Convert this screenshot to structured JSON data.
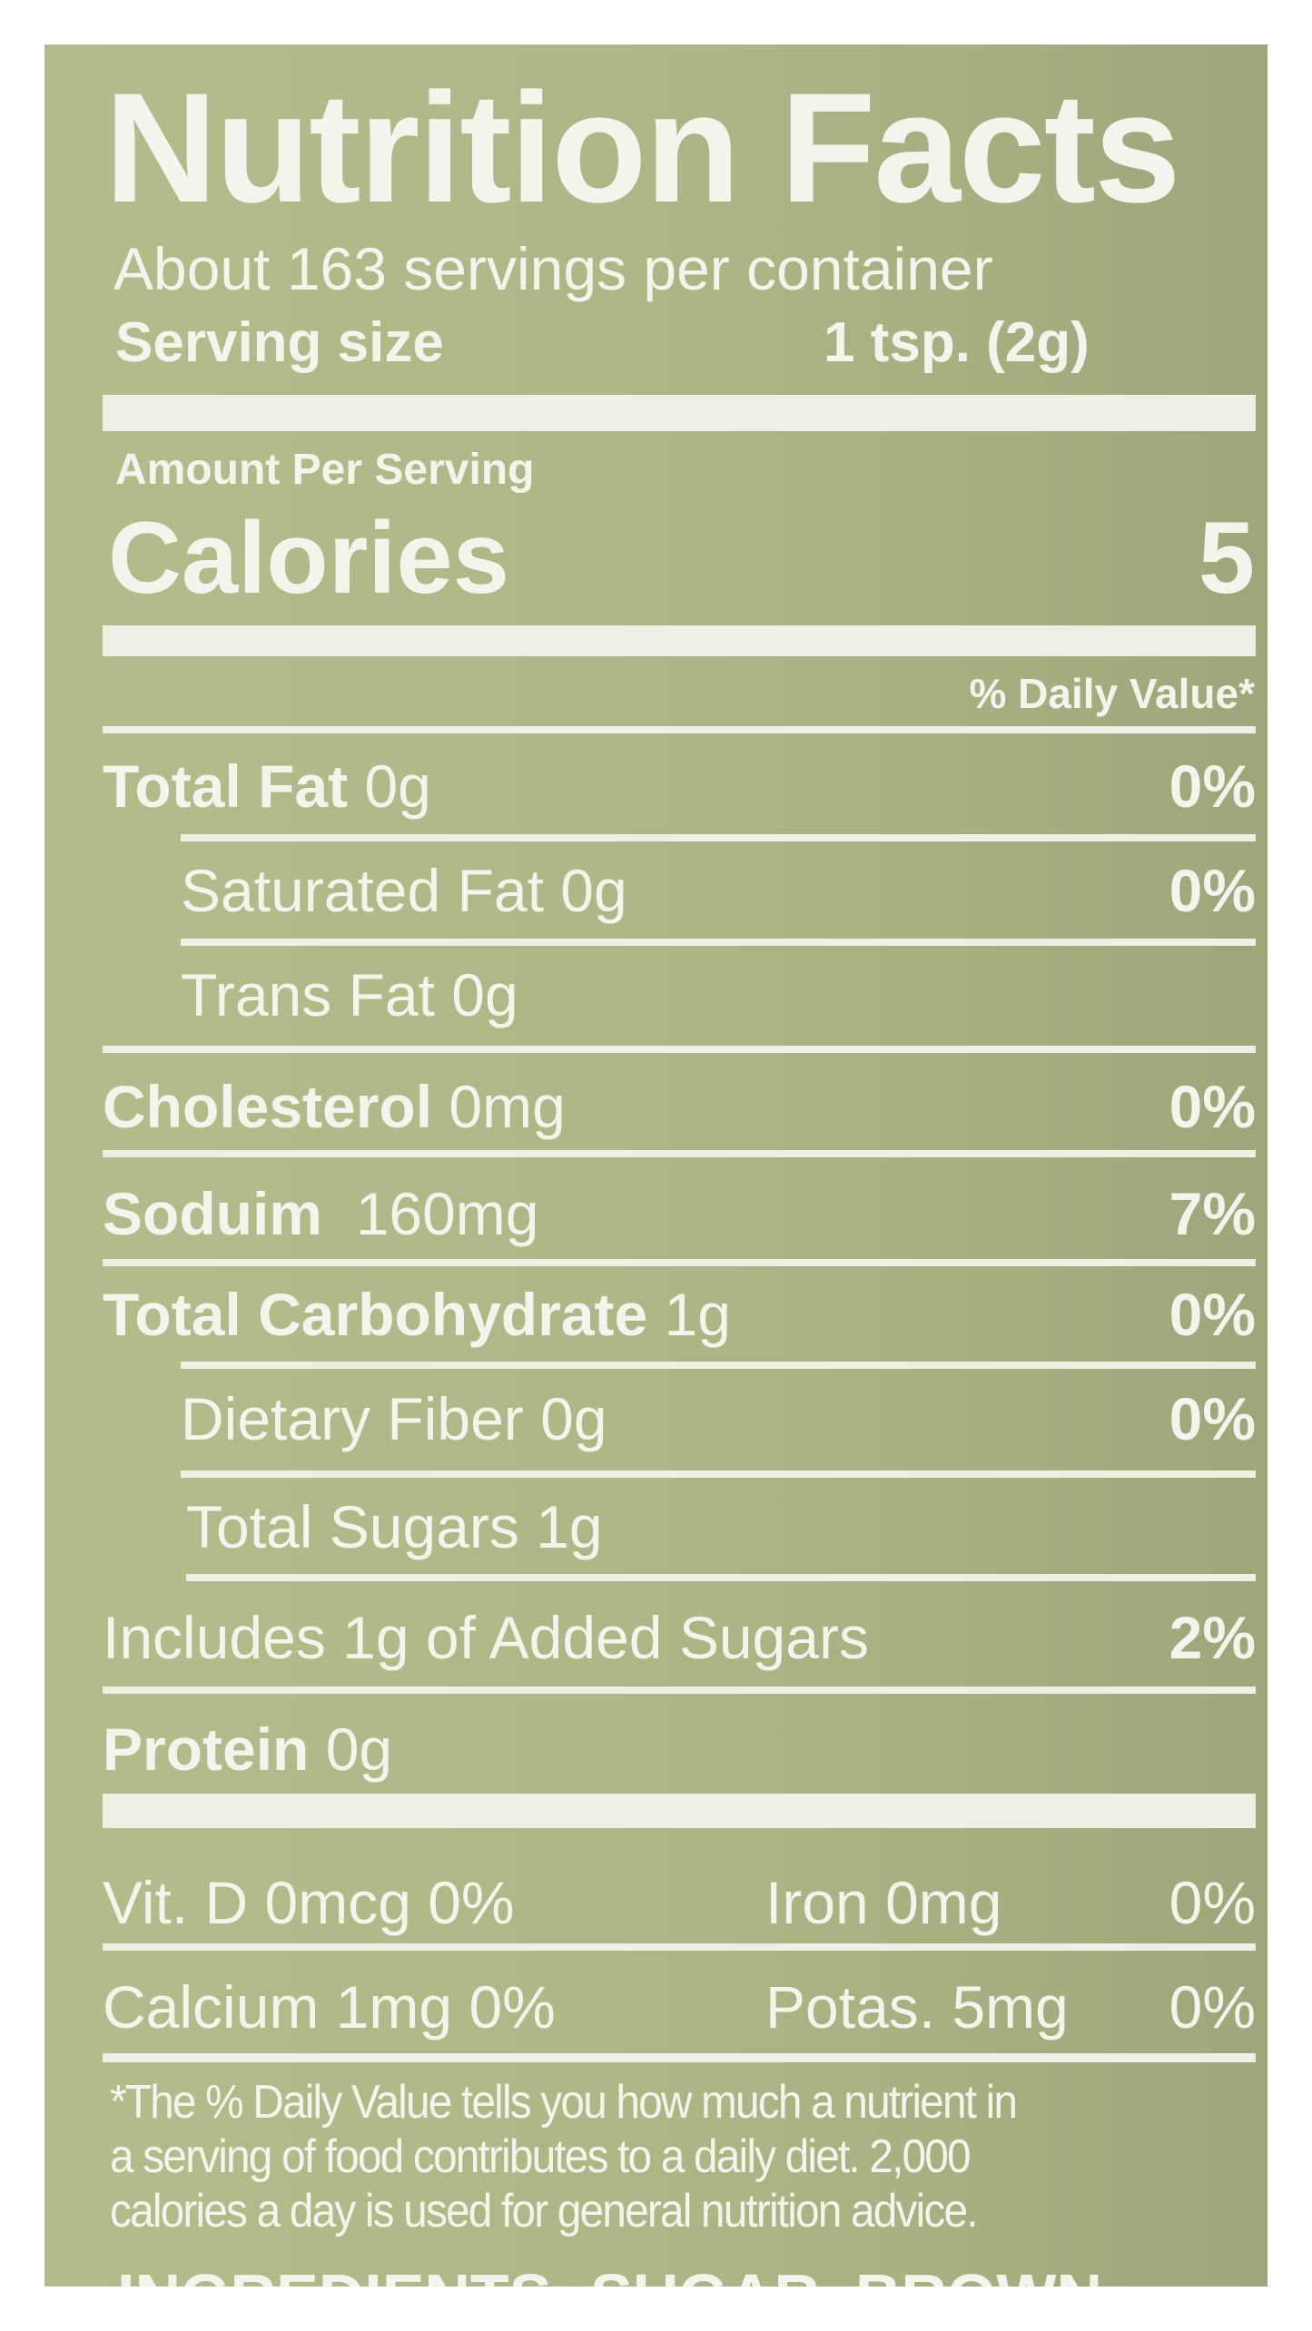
{
  "label": {
    "title": "Nutrition Facts",
    "servings_per_container": "About 163 servings per container",
    "serving_size_label": "Serving size",
    "serving_size_value": "1 tsp. (2g)",
    "amount_per_serving": "Amount Per Serving",
    "calories_label": "Calories",
    "calories_value": "5",
    "daily_value_header": "% Daily Value*",
    "nutrients": [
      {
        "name": "Total Fat",
        "amount": "0g",
        "dv": "0%"
      },
      {
        "name": "Saturated Fat",
        "amount": "0g",
        "dv": "0%"
      },
      {
        "name": "Trans Fat",
        "amount": "0g",
        "dv": ""
      },
      {
        "name": "Cholesterol",
        "amount": "0mg",
        "dv": "0%"
      },
      {
        "name": "Soduim",
        "amount": "160mg",
        "dv": "7%"
      },
      {
        "name": "Total Carbohydrate",
        "amount": "1g",
        "dv": "0%"
      },
      {
        "name": "Dietary Fiber",
        "amount": "0g",
        "dv": "0%"
      },
      {
        "name": "Total Sugars",
        "amount": "1g",
        "dv": ""
      },
      {
        "name": "Includes 1g of Added Sugars",
        "amount": "",
        "dv": "2%"
      },
      {
        "name": "Protein",
        "amount": "0g",
        "dv": ""
      }
    ],
    "vitamins": [
      {
        "left": "Vit. D 0mcg 0%",
        "mid": "Iron 0mg",
        "right": "0%"
      },
      {
        "left": "Calcium 1mg 0%",
        "mid": "Potas. 5mg",
        "right": "0%"
      }
    ],
    "footnote": [
      "*The % Daily Value tells you how much a nutrient in",
      "a serving of food contributes to a daily diet. 2,000",
      "calories a day is used for general nutrition advice."
    ],
    "ingredients_partial": "INGREDIENTS: SUGAR, BROWN"
  },
  "colors": {
    "panel": "#aeb886",
    "text": "#f3f4ec"
  }
}
